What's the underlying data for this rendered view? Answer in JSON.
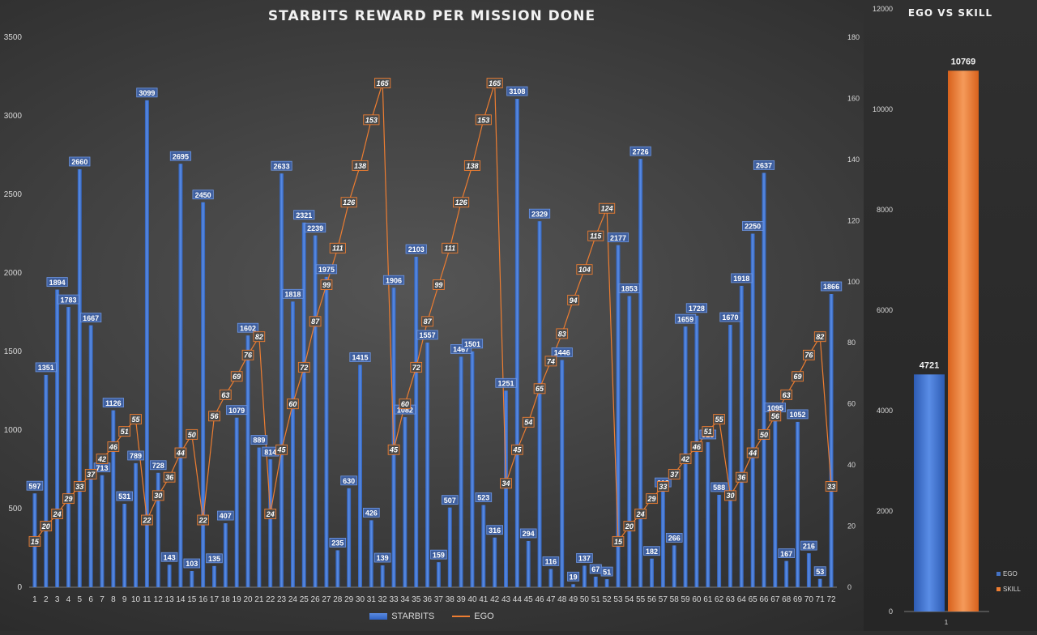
{
  "chart_data": [
    {
      "type": "bar",
      "title": "STARBITS REWARD PER MISSION DONE",
      "categories": [
        "1",
        "2",
        "3",
        "4",
        "5",
        "6",
        "7",
        "8",
        "9",
        "10",
        "11",
        "12",
        "13",
        "14",
        "15",
        "16",
        "17",
        "18",
        "19",
        "20",
        "21",
        "22",
        "23",
        "24",
        "25",
        "26",
        "27",
        "28",
        "29",
        "30",
        "31",
        "32",
        "33",
        "34",
        "35",
        "36",
        "37",
        "38",
        "39",
        "40",
        "41",
        "42",
        "43",
        "44",
        "45",
        "46",
        "47",
        "48",
        "49",
        "50",
        "51",
        "52",
        "53",
        "54",
        "55",
        "56",
        "57",
        "58",
        "59",
        "60",
        "61",
        "62",
        "63",
        "64",
        "65",
        "66",
        "67",
        "68",
        "69",
        "70",
        "71",
        "72"
      ],
      "series": [
        {
          "name": "STARBITS",
          "type": "bar",
          "axis": "left",
          "color": "#4472c4",
          "values": [
            597,
            1351,
            1894,
            1783,
            2660,
            1667,
            713,
            1126,
            531,
            789,
            3099,
            728,
            143,
            2695,
            103,
            2450,
            135,
            407,
            1079,
            1602,
            889,
            814,
            2633,
            1818,
            2321,
            2239,
            1975,
            235,
            630,
            1415,
            426,
            139,
            1906,
            1082,
            2103,
            1557,
            159,
            507,
            1467,
            1501,
            523,
            316,
            1251,
            3108,
            294,
            2329,
            116,
            1446,
            19,
            137,
            67,
            51,
            2177,
            1853,
            2726,
            182,
            618,
            266,
            1659,
            1728,
            923,
            588,
            1670,
            1918,
            2250,
            2637,
            1095,
            167,
            1052,
            216,
            53,
            1866
          ]
        },
        {
          "name": "EGO",
          "type": "line",
          "axis": "right",
          "color": "#ed7d31",
          "values": [
            15,
            20,
            24,
            29,
            33,
            37,
            42,
            46,
            51,
            55,
            22,
            30,
            36,
            44,
            50,
            22,
            56,
            63,
            69,
            76,
            82,
            24,
            45,
            60,
            72,
            87,
            99,
            111,
            126,
            138,
            153,
            165,
            45,
            60,
            72,
            87,
            99,
            111,
            126,
            138,
            153,
            165,
            34,
            45,
            54,
            65,
            74,
            83,
            94,
            104,
            115,
            124,
            15,
            20,
            24,
            29,
            33,
            37,
            42,
            46,
            51,
            55,
            30,
            36,
            44,
            50,
            56,
            63,
            69,
            76,
            82,
            33
          ]
        }
      ],
      "y_left": {
        "min": 0,
        "max": 3500,
        "ticks": [
          "0",
          "500",
          "1000",
          "1500",
          "2000",
          "2500",
          "3000",
          "3500"
        ]
      },
      "y_right": {
        "min": 0,
        "max": 180,
        "ticks": [
          "0",
          "20",
          "40",
          "60",
          "80",
          "100",
          "120",
          "140",
          "160",
          "180"
        ]
      },
      "grid": false,
      "legend_position": "bottom"
    },
    {
      "type": "bar",
      "title": "EGO VS SKILL",
      "categories": [
        "1"
      ],
      "series": [
        {
          "name": "EGO",
          "values": [
            4721
          ],
          "color": "#4472c4"
        },
        {
          "name": "SKILL",
          "values": [
            10769
          ],
          "color": "#ed7d31"
        }
      ],
      "y": {
        "min": 0,
        "max": 12000,
        "ticks": [
          "0",
          "2000",
          "4000",
          "6000",
          "8000",
          "10000",
          "12000"
        ]
      },
      "grid": false,
      "legend_position": "right"
    }
  ],
  "legend": {
    "starbits": "STARBITS",
    "ego": "EGO"
  },
  "side_legend": {
    "ego": "EGO",
    "skill": "SKILL"
  }
}
